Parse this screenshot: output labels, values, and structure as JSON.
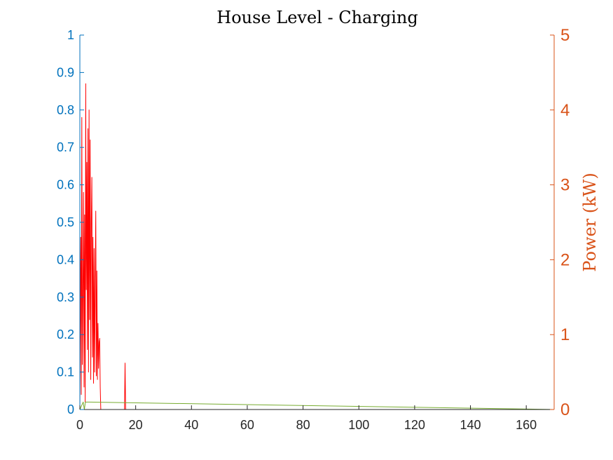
{
  "colors": {
    "left_axis": "#0072BD",
    "right_axis": "#D95319",
    "x_axis": "#262626",
    "series_red": "#FF0000",
    "series_green": "#77AC30"
  },
  "chart_data": {
    "type": "line",
    "title": "House Level - Charging",
    "xlabel": "",
    "ylabel_left": "",
    "ylabel_right": "Power (kW)",
    "xlim": [
      0,
      170
    ],
    "ylim_left": [
      0,
      1
    ],
    "ylim_right": [
      0,
      5
    ],
    "grid": false,
    "x_ticks": [
      "0",
      "20",
      "40",
      "60",
      "80",
      "100",
      "120",
      "140",
      "160"
    ],
    "y_left_ticks": [
      "0",
      "0.1",
      "0.2",
      "0.3",
      "0.4",
      "0.5",
      "0.6",
      "0.7",
      "0.8",
      "0.9",
      "1"
    ],
    "y_right_ticks": [
      "0",
      "1",
      "2",
      "3",
      "4",
      "5"
    ],
    "series": [
      {
        "axis": "right",
        "color": "#FF0000",
        "x": [
          0,
          0.3,
          0.5,
          0.7,
          0.9,
          1.1,
          1.3,
          1.5,
          1.7,
          1.9,
          2.1,
          2.3,
          2.5,
          2.7,
          2.9,
          3.1,
          3.3,
          3.5,
          3.7,
          3.9,
          4.1,
          4.3,
          4.5,
          4.7,
          4.9,
          5.1,
          5.3,
          5.5,
          5.7,
          5.9,
          6.1,
          6.3,
          6.5,
          6.7,
          6.9,
          7.1,
          7.3,
          7.5,
          7.7,
          8.0,
          16.0,
          16.2,
          16.4,
          16.6,
          17.0,
          170
        ],
        "y": [
          0,
          2.3,
          0.2,
          3.9,
          0.6,
          1.5,
          2.9,
          0.3,
          2.6,
          0.1,
          4.35,
          1.6,
          3.3,
          0.8,
          3.75,
          0.5,
          4.0,
          1.2,
          3.6,
          0.4,
          2.5,
          3.1,
          0.7,
          2.3,
          0.35,
          2.15,
          0.5,
          1.7,
          2.65,
          0.45,
          1.85,
          0.4,
          1.15,
          0.55,
          0.9,
          0.95,
          0.3,
          0,
          0,
          0,
          0,
          0.62,
          0,
          0,
          0,
          0
        ]
      },
      {
        "axis": "left",
        "color": "#77AC30",
        "x": [
          0,
          1.2,
          1.6,
          2.0,
          170
        ],
        "y": [
          0,
          0.02,
          0,
          0.02,
          0
        ]
      }
    ]
  }
}
